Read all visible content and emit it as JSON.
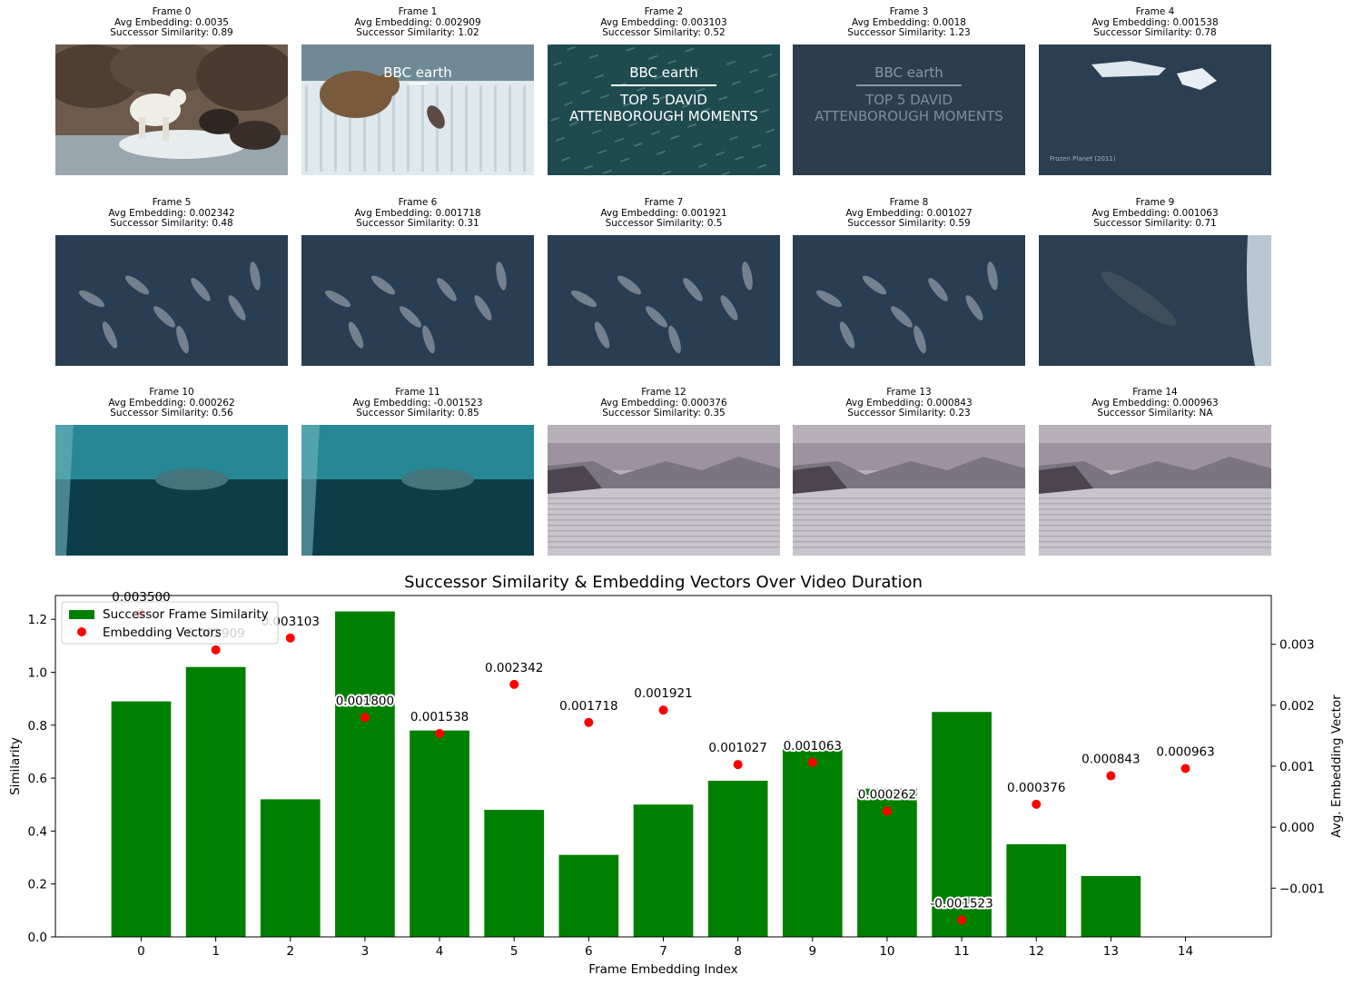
{
  "frames": [
    {
      "title": "Frame 0",
      "avg": "Avg Embedding: 0.0035",
      "sim": "Successor Similarity: 0.89",
      "scene": "polar-bear-walrus",
      "overlay": ""
    },
    {
      "title": "Frame 1",
      "avg": "Avg Embedding: 0.002909",
      "sim": "Successor Similarity: 1.02",
      "scene": "bear-waterfall",
      "overlay": "BBC earth"
    },
    {
      "title": "Frame 2",
      "avg": "Avg Embedding: 0.003103",
      "sim": "Successor Similarity: 0.52",
      "scene": "fish-school-title",
      "overlay": "BBC earth",
      "overlay_line1": "TOP 5 DAVID",
      "overlay_line2": "ATTENBOROUGH MOMENTS"
    },
    {
      "title": "Frame 3",
      "avg": "Avg Embedding: 0.0018",
      "sim": "Successor Similarity: 1.23",
      "scene": "faded-title",
      "overlay": "BBC earth",
      "overlay_line1": "TOP 5 DAVID",
      "overlay_line2": "ATTENBOROUGH MOMENTS"
    },
    {
      "title": "Frame 4",
      "avg": "Avg Embedding: 0.001538",
      "sim": "Successor Similarity: 0.78",
      "scene": "icebergs",
      "overlay": "Frozen Planet (2011)"
    },
    {
      "title": "Frame 5",
      "avg": "Avg Embedding: 0.002342",
      "sim": "Successor Similarity: 0.48",
      "scene": "narwhals-ocean",
      "overlay": ""
    },
    {
      "title": "Frame 6",
      "avg": "Avg Embedding: 0.001718",
      "sim": "Successor Similarity: 0.31",
      "scene": "narwhals-ocean",
      "overlay": ""
    },
    {
      "title": "Frame 7",
      "avg": "Avg Embedding: 0.001921",
      "sim": "Successor Similarity: 0.5",
      "scene": "narwhals-ocean",
      "overlay": ""
    },
    {
      "title": "Frame 8",
      "avg": "Avg Embedding: 0.001027",
      "sim": "Successor Similarity: 0.59",
      "scene": "narwhals-ocean",
      "overlay": ""
    },
    {
      "title": "Frame 9",
      "avg": "Avg Embedding: 0.001063",
      "sim": "Successor Similarity: 0.71",
      "scene": "whale-ice-edge",
      "overlay": ""
    },
    {
      "title": "Frame 10",
      "avg": "Avg Embedding: 0.000262",
      "sim": "Successor Similarity: 0.56",
      "scene": "underwater-whale",
      "overlay": ""
    },
    {
      "title": "Frame 11",
      "avg": "Avg Embedding: -0.001523",
      "sim": "Successor Similarity: 0.85",
      "scene": "underwater-whale",
      "overlay": ""
    },
    {
      "title": "Frame 12",
      "avg": "Avg Embedding: 0.000376",
      "sim": "Successor Similarity: 0.35",
      "scene": "arctic-landscape",
      "overlay": ""
    },
    {
      "title": "Frame 13",
      "avg": "Avg Embedding: 0.000843",
      "sim": "Successor Similarity: 0.23",
      "scene": "arctic-landscape",
      "overlay": ""
    },
    {
      "title": "Frame 14",
      "avg": "Avg Embedding: 0.000963",
      "sim": "Successor Similarity: NA",
      "scene": "arctic-landscape",
      "overlay": ""
    }
  ],
  "chart_data": {
    "type": "bar",
    "title": "Successor Similarity & Embedding Vectors Over Video Duration",
    "xlabel": "Frame Embedding Index",
    "ylabel": "Similarity",
    "y2label": "Avg. Embedding Vector",
    "categories": [
      "0",
      "1",
      "2",
      "3",
      "4",
      "5",
      "6",
      "7",
      "8",
      "9",
      "10",
      "11",
      "12",
      "13",
      "14"
    ],
    "xlim": [
      -1.15,
      15.15
    ],
    "ylim": [
      0,
      1.29
    ],
    "y2lim": [
      -0.0018,
      0.0038
    ],
    "yticks": [
      0.0,
      0.2,
      0.4,
      0.6,
      0.8,
      1.0,
      1.2
    ],
    "ytick_labels": [
      "0.0",
      "0.2",
      "0.4",
      "0.6",
      "0.8",
      "1.0",
      "1.2"
    ],
    "y2ticks": [
      -0.001,
      0.0,
      0.001,
      0.002,
      0.003
    ],
    "y2tick_labels": [
      "−0.001",
      "0.000",
      "0.001",
      "0.002",
      "0.003"
    ],
    "series": [
      {
        "name": "Successor Frame Similarity",
        "kind": "bar",
        "color": "#008000",
        "values": [
          0.89,
          1.02,
          0.52,
          1.23,
          0.78,
          0.48,
          0.31,
          0.5,
          0.59,
          0.71,
          0.56,
          0.85,
          0.35,
          0.23,
          null
        ]
      },
      {
        "name": "Embedding Vectors",
        "kind": "scatter",
        "axis": "right",
        "color": "#ff0000",
        "values": [
          0.0035,
          0.002909,
          0.003103,
          0.0018,
          0.001538,
          0.002342,
          0.001718,
          0.001921,
          0.001027,
          0.001063,
          0.000262,
          -0.001523,
          0.000376,
          0.000843,
          0.000963
        ],
        "labels": [
          "0.003500",
          "0.002909",
          "0.003103",
          "0.001800",
          "0.001538",
          "0.002342",
          "0.001718",
          "0.001921",
          "0.001027",
          "0.001063",
          "0.000262",
          "-0.001523",
          "0.000376",
          "0.000843",
          "0.000963"
        ]
      }
    ],
    "legend": {
      "placement": "upper-left",
      "entries": [
        "Successor Frame Similarity",
        "Embedding Vectors"
      ]
    },
    "grid": false
  }
}
